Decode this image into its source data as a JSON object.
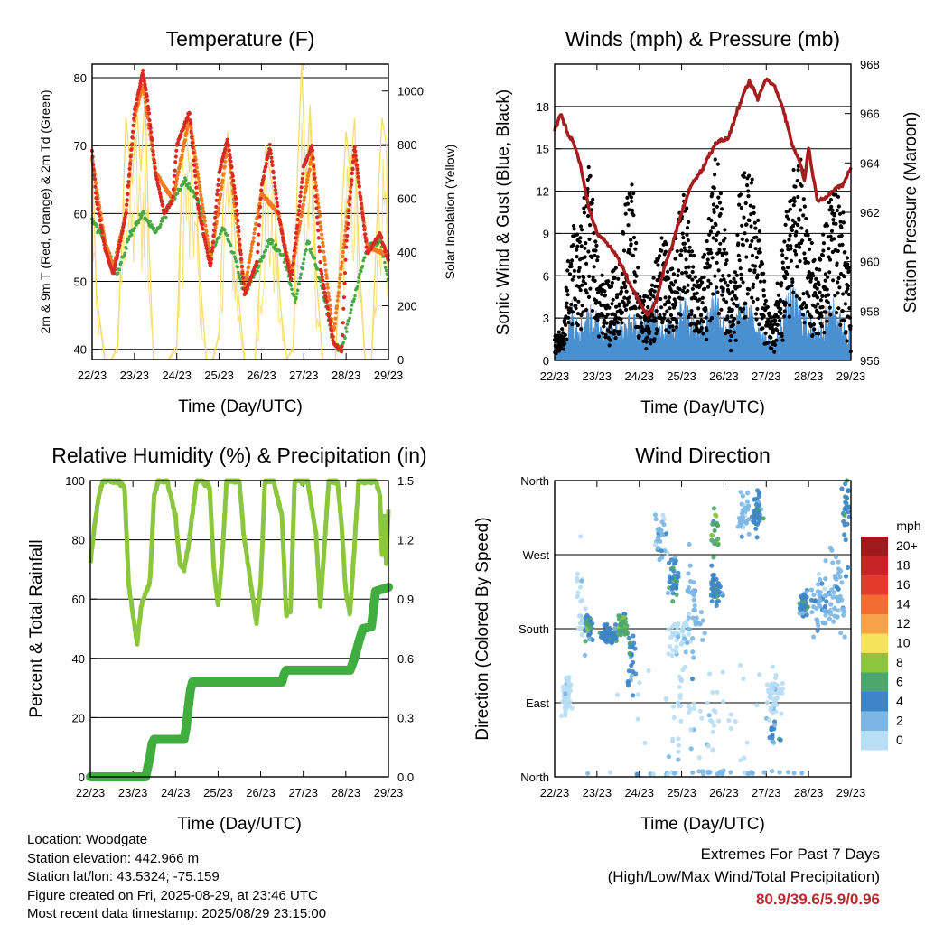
{
  "chart_data": [
    {
      "id": "temperature",
      "type": "line",
      "title": "Temperature (F)",
      "xlabel": "Time (Day/UTC)",
      "ylabel": "2m & 9m T (Red, Orange) & 2m Td (Green)",
      "ylabel_right": "Solar Insolation (Yellow)",
      "x_ticks": [
        "22/23",
        "23/23",
        "24/23",
        "25/23",
        "26/23",
        "27/23",
        "28/23",
        "29/23"
      ],
      "ylim": [
        38.5,
        82
      ],
      "y_ticks": [
        40,
        50,
        60,
        70,
        80
      ],
      "ylim_right": [
        0,
        1100
      ],
      "y_ticks_right": [
        0,
        200,
        400,
        600,
        800,
        1000
      ],
      "grid": "horizontal",
      "colors": {
        "temp2m": "#d92b23",
        "temp9m": "#f47a22",
        "dewpoint": "#47a844",
        "solar": "#f7dc6a"
      },
      "series": [
        {
          "key": "temp2m",
          "x": [
            0,
            0.1,
            0.3,
            0.5,
            0.8,
            1.0,
            1.2,
            1.3,
            1.5,
            1.7,
            1.9,
            2.0,
            2.3,
            2.5,
            2.8,
            3.0,
            3.2,
            3.4,
            3.6,
            3.9,
            4.0,
            4.2,
            4.4,
            4.7,
            5.0,
            5.2,
            5.4,
            5.7,
            5.9,
            6.0,
            6.2,
            6.5,
            6.8,
            7.0
          ],
          "y": [
            69,
            62,
            55,
            51,
            60,
            75,
            80.9,
            77,
            66,
            60,
            62,
            70,
            75,
            61,
            52,
            66,
            71,
            62,
            48,
            53,
            64,
            70,
            60,
            50,
            67,
            70,
            52,
            41,
            39.6,
            55,
            70,
            54,
            57,
            53
          ]
        },
        {
          "key": "temp9m",
          "x": [
            0,
            0.3,
            0.5,
            0.8,
            1.0,
            1.2,
            1.5,
            1.9,
            2.3,
            2.8,
            3.2,
            3.6,
            4.0,
            4.4,
            4.7,
            5.2,
            5.7,
            6.2,
            6.5,
            7.0
          ],
          "y": [
            68,
            56,
            52,
            60,
            74,
            79,
            66,
            62,
            74,
            53,
            70,
            49,
            63,
            60,
            51,
            69,
            42,
            69,
            55,
            54
          ]
        },
        {
          "key": "dewpoint",
          "x": [
            0,
            0.3,
            0.6,
            0.9,
            1.2,
            1.5,
            1.9,
            2.2,
            2.5,
            2.8,
            3.1,
            3.4,
            3.6,
            3.9,
            4.2,
            4.5,
            4.8,
            5.1,
            5.4,
            5.7,
            5.9,
            6.2,
            6.5,
            6.8,
            7.0
          ],
          "y": [
            59,
            56,
            51,
            57,
            60,
            57,
            62,
            65,
            62,
            54,
            58,
            53,
            48,
            52,
            56,
            54,
            47,
            56,
            50,
            41,
            40,
            48,
            55,
            56,
            50
          ]
        },
        {
          "key": "solar",
          "x": [
            0,
            0.1,
            0.3,
            0.45,
            0.6,
            0.7,
            0.8,
            0.95,
            1.05,
            1.15,
            1.25,
            1.35,
            1.45,
            1.55,
            1.7,
            1.8,
            2.0,
            2.1,
            2.2,
            2.3,
            2.4,
            2.55,
            2.7,
            2.85,
            3.0,
            3.1,
            3.2,
            3.3,
            3.45,
            3.6,
            3.75,
            3.85,
            4.0,
            4.1,
            4.2,
            4.3,
            4.45,
            4.6,
            4.75,
            4.85,
            4.95,
            5.05,
            5.15,
            5.3,
            5.45,
            5.6,
            5.75,
            5.85,
            6.0,
            6.1,
            6.2,
            6.3,
            6.45,
            6.6,
            6.75,
            6.85,
            6.95,
            7.0
          ],
          "y": [
            800,
            250,
            0,
            0,
            50,
            450,
            900,
            650,
            950,
            700,
            1000,
            400,
            0,
            0,
            0,
            0,
            50,
            600,
            900,
            700,
            800,
            300,
            0,
            0,
            100,
            600,
            850,
            650,
            250,
            0,
            0,
            0,
            400,
            800,
            700,
            600,
            200,
            0,
            50,
            700,
            1100,
            650,
            950,
            300,
            0,
            0,
            0,
            400,
            850,
            700,
            900,
            400,
            0,
            0,
            600,
            900,
            800,
            300
          ]
        }
      ]
    },
    {
      "id": "winds",
      "type": "scatter",
      "title": "Winds (mph) & Pressure (mb)",
      "xlabel": "Time (Day/UTC)",
      "ylabel": "Sonic Wind & Gust (Blue, Black)",
      "ylabel_right": "Station Pressure (Maroon)",
      "x_ticks": [
        "22/23",
        "23/23",
        "24/23",
        "25/23",
        "26/23",
        "27/23",
        "28/23",
        "29/23"
      ],
      "ylim": [
        0,
        21
      ],
      "y_ticks": [
        0,
        3,
        6,
        9,
        12,
        15,
        18
      ],
      "ylim_right": [
        956,
        968
      ],
      "y_ticks_right": [
        956,
        958,
        960,
        962,
        964,
        966,
        968
      ],
      "grid": "horizontal",
      "colors": {
        "gust": "#000000",
        "wind": "#4a90d0",
        "pressure": "#a51d1d"
      },
      "pressure": {
        "x": [
          0,
          0.15,
          0.3,
          0.45,
          0.6,
          0.8,
          1.0,
          1.2,
          1.4,
          1.6,
          1.8,
          2.0,
          2.2,
          2.4,
          2.6,
          2.8,
          3.0,
          3.2,
          3.5,
          3.8,
          4.1,
          4.4,
          4.6,
          4.8,
          5.0,
          5.2,
          5.4,
          5.6,
          5.8,
          5.9,
          6.0,
          6.2,
          6.4,
          6.6,
          6.8,
          7.0
        ],
        "y": [
          965.3,
          966,
          965.2,
          964.8,
          964,
          962.2,
          961.2,
          960.8,
          960.4,
          959.8,
          959,
          958.4,
          957.8,
          958.4,
          959.8,
          960.8,
          962,
          963,
          963.8,
          964.8,
          965,
          966.5,
          967.3,
          966.6,
          967.4,
          967.1,
          966.2,
          964.8,
          964,
          963.3,
          964.6,
          962.5,
          962.6,
          962.9,
          963.1,
          963.8
        ]
      },
      "wind_scale": [
        0.8,
        0.8,
        3.5,
        2.5,
        3.2,
        2.8,
        2.0,
        2.5,
        2.0,
        2.8,
        2.2,
        3.0,
        3.5,
        2.0,
        2.5,
        4.0,
        3.2,
        2.0,
        3.0,
        4.5,
        2.8,
        2.0,
        3.5,
        3.2,
        2.5,
        1.5,
        1.0,
        3.0,
        4.5,
        3.2,
        2.5,
        2.0,
        3.0,
        3.5,
        2.5,
        2.0
      ],
      "gust_scale": [
        1.5,
        2.0,
        10,
        8,
        14,
        7,
        5,
        6,
        8,
        13,
        5,
        4,
        7,
        8,
        7,
        11,
        9,
        5,
        8,
        14,
        9,
        4,
        12,
        14,
        10,
        4,
        3,
        8,
        12,
        14,
        8,
        6,
        9,
        13,
        10,
        5
      ]
    },
    {
      "id": "humidity",
      "type": "line",
      "title": "Relative Humidity (%) & Precipitation (in)",
      "xlabel": "Time (Day/UTC)",
      "ylabel": "Percent & Total Rainfall",
      "x_ticks": [
        "22/23",
        "23/23",
        "24/23",
        "25/23",
        "26/23",
        "27/23",
        "28/23",
        "29/23"
      ],
      "ylim": [
        0,
        100
      ],
      "y_ticks": [
        0,
        20,
        40,
        60,
        80,
        100
      ],
      "ylim_right": [
        0,
        1.5
      ],
      "y_ticks_right": [
        "0.0",
        "0.3",
        "0.6",
        "0.9",
        "1.2",
        "1.5"
      ],
      "grid": "horizontal",
      "colors": {
        "rh": "#8cc63f",
        "precip": "#3fae3f"
      },
      "rh": {
        "x": [
          0,
          0.1,
          0.2,
          0.3,
          0.6,
          0.8,
          0.9,
          1.0,
          1.1,
          1.2,
          1.3,
          1.4,
          1.5,
          1.6,
          1.8,
          2.0,
          2.1,
          2.2,
          2.3,
          2.5,
          2.6,
          2.8,
          2.9,
          3.0,
          3.1,
          3.2,
          3.3,
          3.5,
          3.6,
          3.8,
          3.9,
          4.0,
          4.1,
          4.2,
          4.3,
          4.5,
          4.6,
          4.7,
          4.8,
          5.0,
          5.1,
          5.3,
          5.4,
          5.6,
          5.7,
          5.8,
          5.9,
          6.0,
          6.1,
          6.3,
          6.4,
          6.5,
          6.6,
          6.7,
          6.8,
          6.85,
          6.9,
          6.95,
          7.0
        ],
        "y": [
          72,
          85,
          95,
          100,
          100,
          98,
          65,
          55,
          45,
          58,
          62,
          66,
          95,
          100,
          100,
          88,
          72,
          70,
          78,
          100,
          100,
          98,
          70,
          58,
          75,
          100,
          100,
          100,
          82,
          62,
          52,
          65,
          100,
          100,
          100,
          88,
          55,
          56,
          100,
          100,
          100,
          82,
          57,
          100,
          100,
          100,
          85,
          62,
          55,
          100,
          100,
          100,
          100,
          100,
          95,
          75,
          88,
          72,
          90
        ]
      },
      "precip": {
        "x": [
          0,
          1.3,
          1.35,
          1.4,
          1.45,
          1.5,
          2.2,
          2.25,
          2.3,
          2.35,
          2.4,
          4.5,
          4.55,
          4.6,
          6.1,
          6.2,
          6.3,
          6.4,
          6.6,
          6.65,
          6.7,
          7.0
        ],
        "y": [
          0,
          0,
          0.05,
          0.1,
          0.17,
          0.19,
          0.19,
          0.25,
          0.35,
          0.44,
          0.48,
          0.48,
          0.52,
          0.54,
          0.54,
          0.6,
          0.68,
          0.75,
          0.76,
          0.85,
          0.94,
          0.96
        ]
      }
    },
    {
      "id": "direction",
      "type": "scatter",
      "title": "Wind Direction",
      "xlabel": "Time (Day/UTC)",
      "ylabel": "Direction (Colored By Speed)",
      "x_ticks": [
        "22/23",
        "23/23",
        "24/23",
        "25/23",
        "26/23",
        "27/23",
        "28/23",
        "29/23"
      ],
      "y_ticks": [
        "North",
        "East",
        "South",
        "West",
        "North"
      ],
      "ylim": [
        0,
        360
      ],
      "grid": "horizontal",
      "clusters": [
        {
          "x": 0.3,
          "y": 100,
          "sx": 0.12,
          "sy": 25,
          "n": 55,
          "c": 0
        },
        {
          "x": 0.6,
          "y": 200,
          "sx": 0.15,
          "sy": 60,
          "n": 25,
          "c": 0
        },
        {
          "x": 0.8,
          "y": 180,
          "sx": 0.1,
          "sy": 15,
          "n": 45,
          "c": 2
        },
        {
          "x": 0.8,
          "y": 185,
          "sx": 0.08,
          "sy": 10,
          "n": 25,
          "c": 3
        },
        {
          "x": 1.3,
          "y": 175,
          "sx": 0.2,
          "sy": 12,
          "n": 60,
          "c": 2
        },
        {
          "x": 1.6,
          "y": 185,
          "sx": 0.12,
          "sy": 15,
          "n": 40,
          "c": 3
        },
        {
          "x": 1.8,
          "y": 150,
          "sx": 0.1,
          "sy": 40,
          "n": 25,
          "c": 2
        },
        {
          "x": 2.5,
          "y": 290,
          "sx": 0.12,
          "sy": 35,
          "n": 30,
          "c": 1
        },
        {
          "x": 2.8,
          "y": 240,
          "sx": 0.15,
          "sy": 25,
          "n": 40,
          "c": 2
        },
        {
          "x": 3.0,
          "y": 170,
          "sx": 0.25,
          "sy": 25,
          "n": 40,
          "c": 0
        },
        {
          "x": 3.3,
          "y": 200,
          "sx": 0.2,
          "sy": 60,
          "n": 40,
          "c": 1
        },
        {
          "x": 3.8,
          "y": 230,
          "sx": 0.12,
          "sy": 25,
          "n": 40,
          "c": 2
        },
        {
          "x": 3.8,
          "y": 300,
          "sx": 0.1,
          "sy": 30,
          "n": 20,
          "c": 3
        },
        {
          "x": 4.5,
          "y": 320,
          "sx": 0.15,
          "sy": 30,
          "n": 30,
          "c": 1
        },
        {
          "x": 4.8,
          "y": 320,
          "sx": 0.12,
          "sy": 25,
          "n": 45,
          "c": 2
        },
        {
          "x": 5.2,
          "y": 100,
          "sx": 0.2,
          "sy": 30,
          "n": 50,
          "c": 0
        },
        {
          "x": 5.2,
          "y": 50,
          "sx": 0.12,
          "sy": 15,
          "n": 15,
          "c": 2
        },
        {
          "x": 5.9,
          "y": 205,
          "sx": 0.1,
          "sy": 20,
          "n": 45,
          "c": 2
        },
        {
          "x": 6.3,
          "y": 210,
          "sx": 0.2,
          "sy": 35,
          "n": 50,
          "c": 1
        },
        {
          "x": 6.7,
          "y": 230,
          "sx": 0.2,
          "sy": 60,
          "n": 45,
          "c": 1
        },
        {
          "x": 6.9,
          "y": 320,
          "sx": 0.1,
          "sy": 30,
          "n": 25,
          "c": 2
        },
        {
          "x": 3.5,
          "y": 80,
          "sx": 1.5,
          "sy": 70,
          "n": 70,
          "c": 0
        },
        {
          "x": 3.5,
          "y": 5,
          "sx": 2.5,
          "sy": 3,
          "n": 35,
          "c": 1
        }
      ],
      "legend": {
        "unit": "mph",
        "position": "right",
        "labels": [
          "20+",
          "18",
          "16",
          "14",
          "12",
          "10",
          "8",
          "6",
          "4",
          "2",
          "0"
        ],
        "colors": [
          "#9e1a1d",
          "#c72226",
          "#e03b2c",
          "#f26b30",
          "#f8a34a",
          "#f5e35c",
          "#8cc63f",
          "#4aa66a",
          "#3d85c6",
          "#7bb6e4",
          "#b8def5"
        ]
      }
    }
  ],
  "footer": {
    "location": "Location: Woodgate",
    "elevation": "Station elevation: 442.966 m",
    "latlon": "Station lat/lon: 43.5324; -75.159",
    "created": "Figure created on Fri, 2025-08-29, at 23:46 UTC",
    "recent": "Most recent data timestamp: 2025/08/29 23:15:00"
  },
  "extremes": {
    "title": "Extremes For Past 7 Days",
    "subtitle": "(High/Low/Max Wind/Total Precipitation)",
    "values": "80.9/39.6/5.9/0.96"
  }
}
